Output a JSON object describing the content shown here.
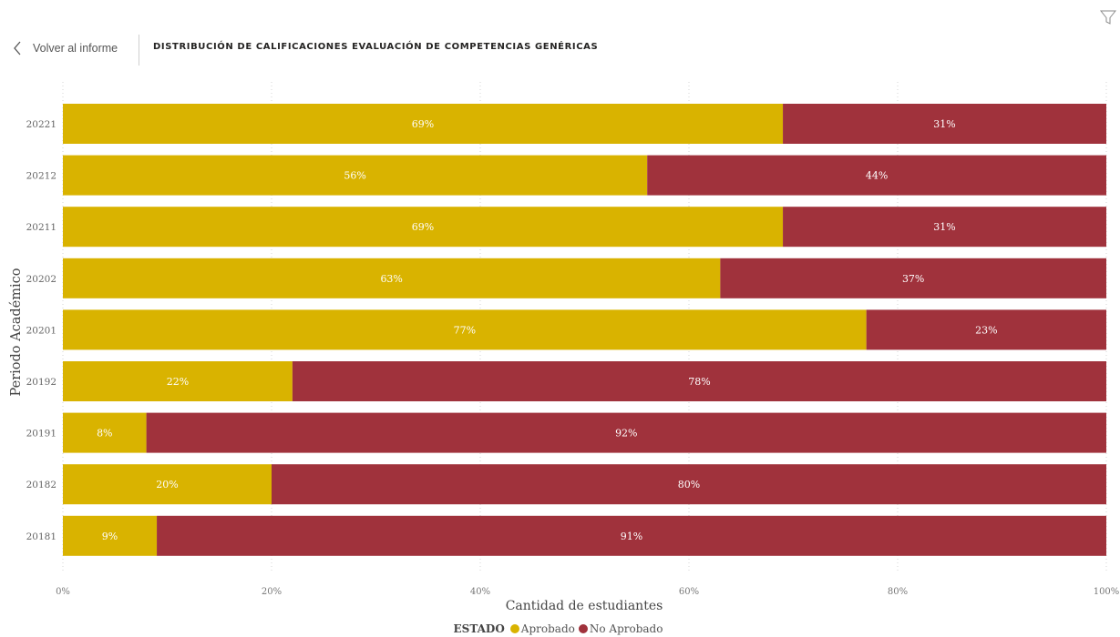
{
  "header": {
    "back_label": "Volver al informe",
    "title": "DISTRIBUCIÓN DE CALIFICACIONES EVALUACIÓN DE COMPETENCIAS GENÉRICAS"
  },
  "icons": {
    "back": "chevron-left-icon",
    "filter": "filter-icon"
  },
  "legend": {
    "title": "ESTADO",
    "items": [
      {
        "label": "Aprobado",
        "color": "#D9B300"
      },
      {
        "label": "No Aprobado",
        "color": "#A0323C"
      }
    ]
  },
  "chart_data": {
    "type": "bar",
    "orientation": "horizontal",
    "stacked": "100%",
    "categories": [
      "20221",
      "20212",
      "20211",
      "20202",
      "20201",
      "20192",
      "20191",
      "20182",
      "20181"
    ],
    "series": [
      {
        "name": "Aprobado",
        "color": "#D9B300",
        "values": [
          69,
          56,
          69,
          63,
          77,
          22,
          8,
          20,
          9
        ],
        "labels": [
          "69%",
          "56%",
          "69%",
          "63%",
          "77%",
          "22%",
          "8%",
          "20%",
          "9%"
        ]
      },
      {
        "name": "No Aprobado",
        "color": "#A0323C",
        "values": [
          31,
          44,
          31,
          37,
          23,
          78,
          92,
          80,
          91
        ],
        "labels": [
          "31%",
          "44%",
          "31%",
          "37%",
          "23%",
          "78%",
          "92%",
          "80%",
          "91%"
        ]
      }
    ],
    "xlabel": "Cantidad de estudiantes",
    "ylabel": "Periodo Académico",
    "xlim": [
      0,
      100
    ],
    "xticks": [
      "0%",
      "20%",
      "40%",
      "60%",
      "80%",
      "100%"
    ],
    "grid": "vertical dotted",
    "legend_position": "bottom"
  }
}
